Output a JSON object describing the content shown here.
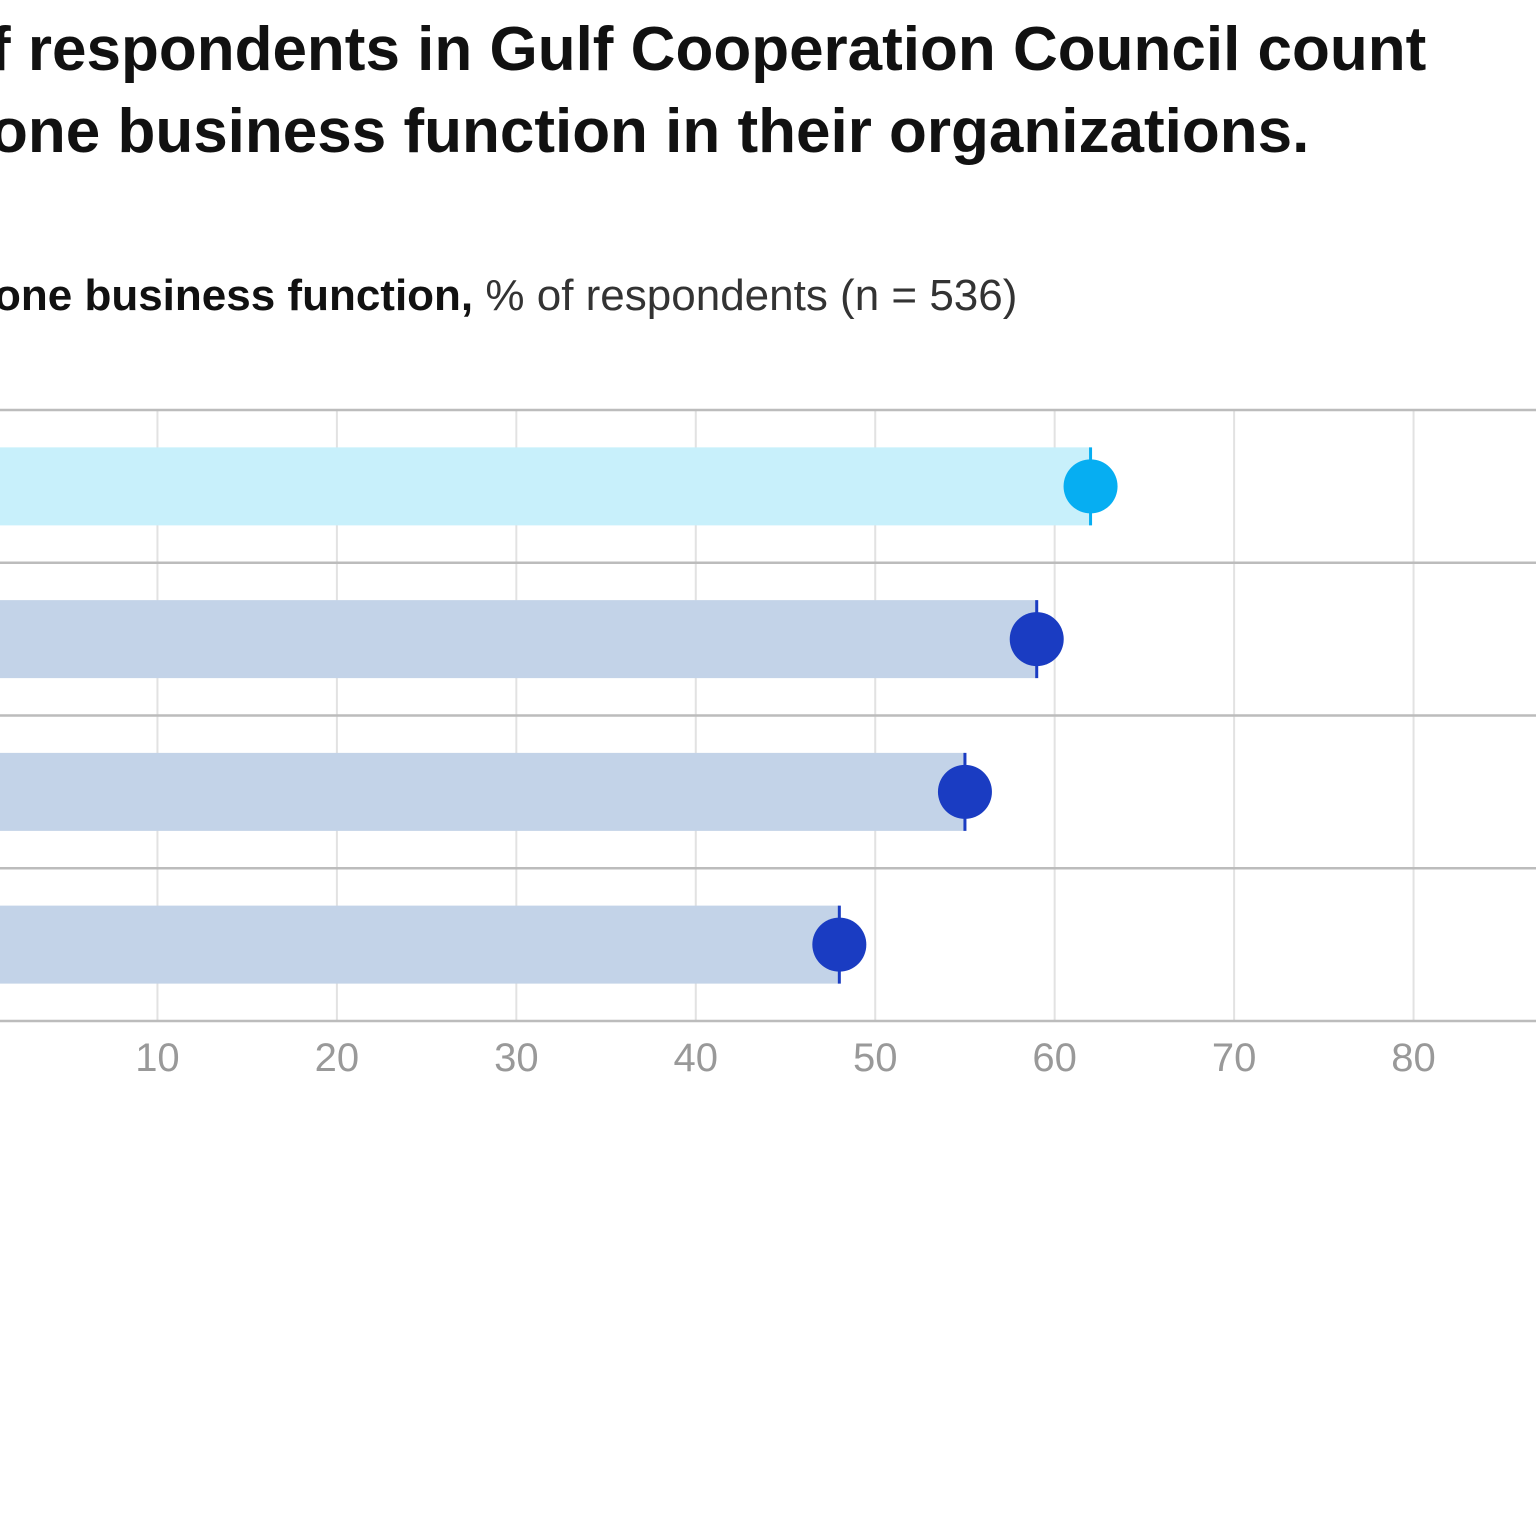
{
  "chart_data": {
    "type": "bar-dot",
    "title_lines": [
      "f respondents in Gulf Cooperation Council count",
      "one business function in their organizations."
    ],
    "subtitle_bold": "one business function,",
    "subtitle": "% of respondents (n = 536)",
    "orientation": "horizontal",
    "categories": [
      null,
      null,
      null,
      null
    ],
    "values": [
      62,
      59,
      55,
      48
    ],
    "bar_colors": [
      "#c8f0fb",
      "#c3d3e8",
      "#c3d3e8",
      "#c3d3e8"
    ],
    "dot_colors": [
      "#06aef2",
      "#1a3cc2",
      "#1a3cc2",
      "#1a3cc2"
    ],
    "xlim": [
      0,
      90
    ],
    "xticks": [
      10,
      20,
      30,
      40,
      50,
      60,
      70,
      80
    ],
    "grid": true
  }
}
